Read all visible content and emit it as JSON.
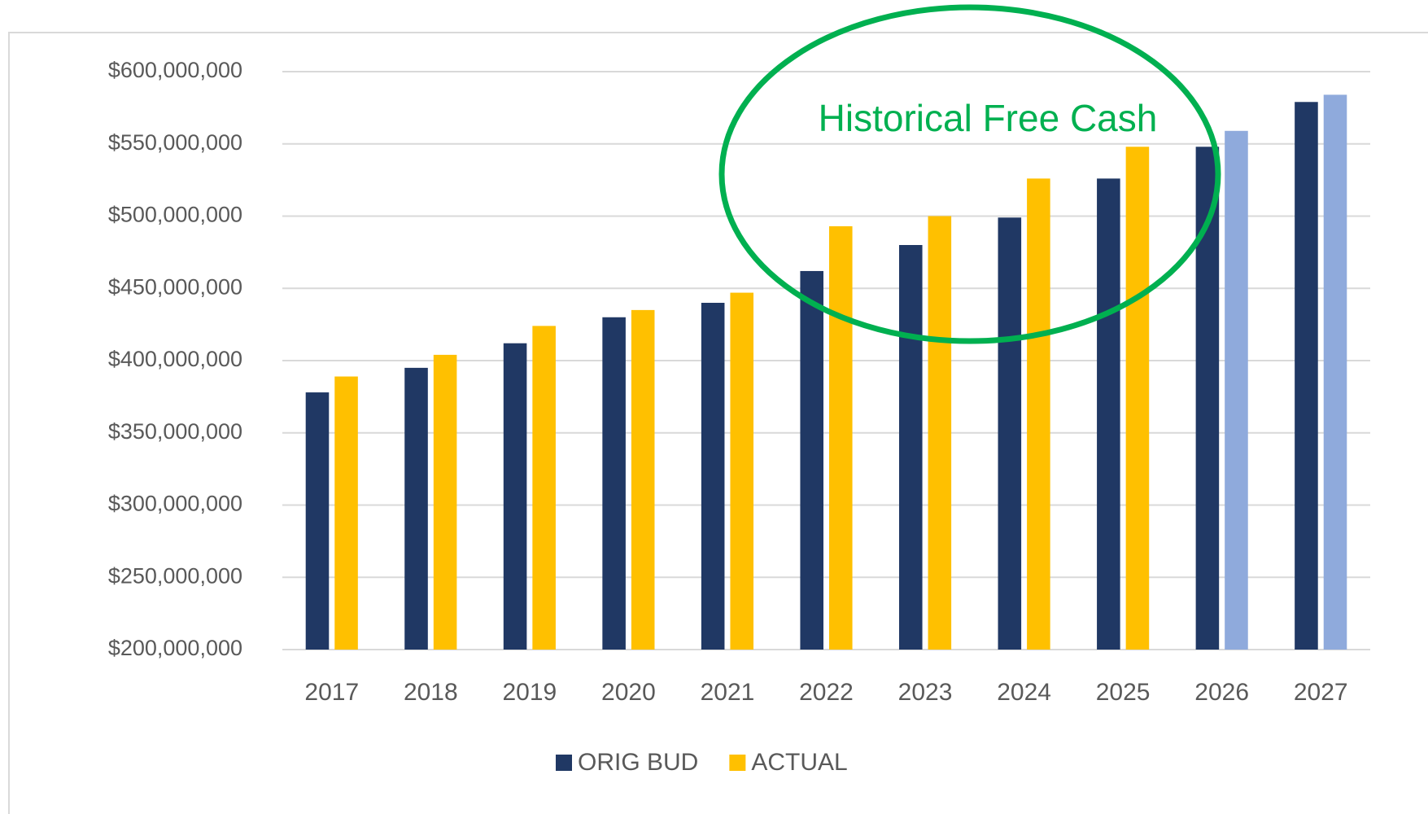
{
  "chart_data": {
    "type": "bar",
    "annotation": "Historical Free Cash",
    "categories": [
      "2017",
      "2018",
      "2019",
      "2020",
      "2021",
      "2022",
      "2023",
      "2024",
      "2025",
      "2026",
      "2027"
    ],
    "series": [
      {
        "name": "ORIG BUD",
        "color": "#203864",
        "values": [
          378000000,
          395000000,
          412000000,
          430000000,
          440000000,
          462000000,
          480000000,
          499000000,
          526000000,
          548000000,
          579000000
        ]
      },
      {
        "name": "ACTUAL",
        "color": "#ffc000",
        "colors": [
          "#ffc000",
          "#ffc000",
          "#ffc000",
          "#ffc000",
          "#ffc000",
          "#ffc000",
          "#ffc000",
          "#ffc000",
          "#ffc000",
          "#8faadc",
          "#8faadc"
        ],
        "values": [
          389000000,
          404000000,
          424000000,
          435000000,
          447000000,
          493000000,
          500000000,
          526000000,
          548000000,
          559000000,
          584000000
        ]
      }
    ],
    "ylim": [
      200000000,
      600000000
    ],
    "yticks": [
      {
        "value": 200000000,
        "label": "$200,000,000"
      },
      {
        "value": 250000000,
        "label": "$250,000,000"
      },
      {
        "value": 300000000,
        "label": "$300,000,000"
      },
      {
        "value": 350000000,
        "label": "$350,000,000"
      },
      {
        "value": 400000000,
        "label": "$400,000,000"
      },
      {
        "value": 450000000,
        "label": "$450,000,000"
      },
      {
        "value": 500000000,
        "label": "$500,000,000"
      },
      {
        "value": 550000000,
        "label": "$550,000,000"
      },
      {
        "value": 600000000,
        "label": "$600,000,000"
      }
    ],
    "grid": true,
    "legend": "bottom"
  }
}
